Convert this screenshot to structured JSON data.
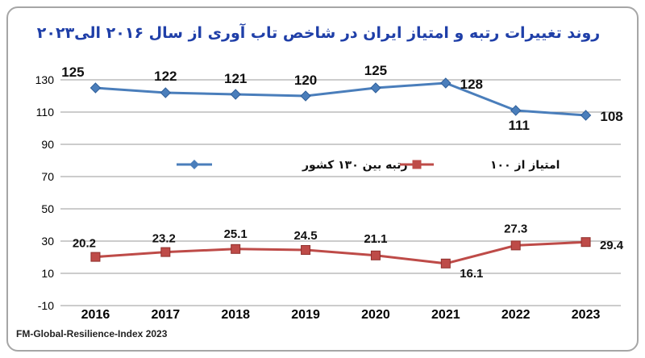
{
  "chart_data": {
    "type": "line",
    "title": "روند تغییرات رتبه و امتیاز ایران در شاخص تاب آوری از سال ۲۰۱۶ الی۲۰۲۳",
    "source": "FM-Global-Resilience-Index 2023",
    "categories": [
      "2016",
      "2017",
      "2018",
      "2019",
      "2020",
      "2021",
      "2022",
      "2023"
    ],
    "ylim": [
      -10,
      130
    ],
    "yticks": [
      -10,
      10,
      30,
      50,
      70,
      90,
      110,
      130
    ],
    "grid": true,
    "legend_placement": "center",
    "series": [
      {
        "name": "رتبه بین ۱۳۰ کشور",
        "values": [
          125,
          122,
          121,
          120,
          125,
          128,
          111,
          108
        ],
        "labels": [
          "125",
          "122",
          "121",
          "120",
          "125",
          "128",
          "111",
          "108"
        ],
        "color": "#4a7ebb",
        "marker": "diamond"
      },
      {
        "name": "امتیاز از ۱۰۰",
        "values": [
          20.2,
          23.2,
          25.1,
          24.5,
          21.1,
          16.1,
          27.3,
          29.4
        ],
        "labels": [
          "20.2",
          "23.2",
          "25.1",
          "24.5",
          "21.1",
          "16.1",
          "27.3",
          "29.4"
        ],
        "color": "#be4b48",
        "marker": "square"
      }
    ]
  }
}
